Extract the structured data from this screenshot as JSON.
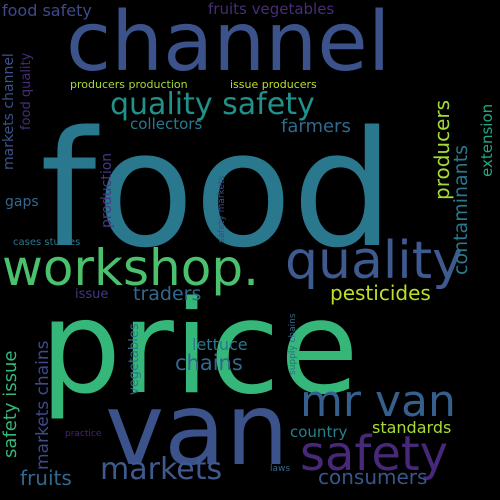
{
  "palette": {
    "background": "#000000",
    "purple": "#482475",
    "indigo": "#414487",
    "blue": "#355f8d",
    "teal": "#2a788e",
    "green": "#22a884",
    "lime": "#7ad151",
    "yellow": "#bddf26"
  },
  "words": [
    {
      "key": "food",
      "text": "food",
      "color": "#2a788e"
    },
    {
      "key": "price",
      "text": "price",
      "color": "#35b779"
    },
    {
      "key": "van",
      "text": "van",
      "color": "#3b528b"
    },
    {
      "key": "channel",
      "text": "channel",
      "color": "#3b528b"
    },
    {
      "key": "workshop",
      "text": "workshop.",
      "color": "#4ac16d"
    },
    {
      "key": "quality",
      "text": "quality",
      "color": "#3e5a8e"
    },
    {
      "key": "safety",
      "text": "safety",
      "color": "#482878"
    },
    {
      "key": "mr-van",
      "text": "mr van",
      "color": "#35608d"
    },
    {
      "key": "markets",
      "text": "markets",
      "color": "#3e5a8e"
    },
    {
      "key": "quality-safety",
      "text": "quality safety",
      "color": "#21918c"
    },
    {
      "key": "consumers",
      "text": "consumers",
      "color": "#39568c"
    },
    {
      "key": "fruits-markets",
      "text": "fruits",
      "color": "#31688e"
    },
    {
      "key": "farmers",
      "text": "farmers",
      "color": "#31688e"
    },
    {
      "key": "traders",
      "text": "traders",
      "color": "#31688e"
    },
    {
      "key": "pesticides",
      "text": "pesticides",
      "color": "#bddf26"
    },
    {
      "key": "chains",
      "text": "chains",
      "color": "#31688e"
    },
    {
      "key": "lettuce",
      "text": "lettuce",
      "color": "#2a788e"
    },
    {
      "key": "standards",
      "text": "standards",
      "color": "#a8db34"
    },
    {
      "key": "country",
      "text": "country",
      "color": "#26828e"
    },
    {
      "key": "collectors",
      "text": "collectors",
      "color": "#2a788e"
    },
    {
      "key": "producers",
      "text": "producers",
      "color": "#a5db36"
    },
    {
      "key": "contaminants",
      "text": "contaminants",
      "color": "#2a788e"
    },
    {
      "key": "extension",
      "text": "extension",
      "color": "#22a884"
    },
    {
      "key": "food-safety",
      "text": "food safety",
      "color": "#3e4a89"
    },
    {
      "key": "fruits-vegetables",
      "text": "fruits vegetables",
      "color": "#472c7a"
    },
    {
      "key": "producers-production",
      "text": "producers production",
      "color": "#a5db36"
    },
    {
      "key": "issue-producers",
      "text": "issue producers",
      "color": "#bddf26"
    },
    {
      "key": "gaps",
      "text": "gaps",
      "color": "#31688e"
    },
    {
      "key": "production",
      "text": "production",
      "color": "#443983"
    },
    {
      "key": "safety-markets",
      "text": "safety markets",
      "color": "#3e4989"
    },
    {
      "key": "cases-studies",
      "text": "cases studies",
      "color": "#2a788e"
    },
    {
      "key": "issue",
      "text": "issue",
      "color": "#453781"
    },
    {
      "key": "vegetables",
      "text": "vegetables",
      "color": "#2a788e"
    },
    {
      "key": "supply-chains",
      "text": "supply chains",
      "color": "#31688e"
    },
    {
      "key": "safety-issue",
      "text": "safety issue",
      "color": "#35b779"
    },
    {
      "key": "markets-chains",
      "text": "markets chains",
      "color": "#3e4a89"
    },
    {
      "key": "markets-channel",
      "text": "markets channel",
      "color": "#3b528b"
    },
    {
      "key": "food-quality",
      "text": "food quality",
      "color": "#472c7a"
    },
    {
      "key": "practice",
      "text": "practice",
      "color": "#482475"
    },
    {
      "key": "laws",
      "text": "laws",
      "color": "#31688e"
    }
  ]
}
